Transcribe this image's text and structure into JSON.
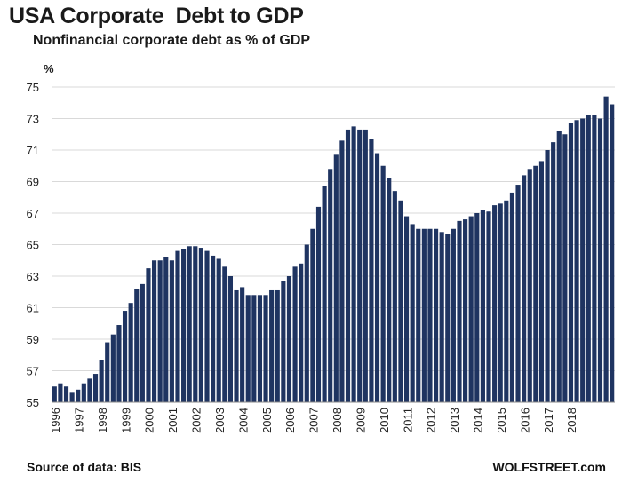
{
  "title": "USA Corporate  Debt to GDP",
  "subtitle": "Nonfinancial corporate debt as % of GDP",
  "source": "Source of data: BIS",
  "brand": "WOLFSTREET.com",
  "chart_data": {
    "type": "bar",
    "ylabel": "%",
    "ylim": [
      55,
      75
    ],
    "yticks": [
      "55",
      "57",
      "59",
      "61",
      "63",
      "65",
      "67",
      "69",
      "71",
      "73",
      "75"
    ],
    "grid": true,
    "bar_color": "#1f3461",
    "year_labels": [
      "1996",
      "1997",
      "1998",
      "1999",
      "2000",
      "2001",
      "2002",
      "2003",
      "2004",
      "2005",
      "2006",
      "2007",
      "2008",
      "2009",
      "2010",
      "2011",
      "2012",
      "2013",
      "2014",
      "2015",
      "2016",
      "2017",
      "2018"
    ],
    "series": [
      {
        "values": [
          56.0,
          56.2,
          56.0,
          55.6,
          55.8,
          56.2,
          56.5,
          56.8,
          57.7,
          58.8,
          59.3,
          59.9,
          60.8,
          61.3,
          62.2,
          62.5,
          63.5,
          64.0,
          64.0,
          64.2,
          64.0,
          64.6,
          64.7,
          64.9,
          64.9,
          64.8,
          64.6,
          64.3,
          64.1,
          63.6,
          63.0,
          62.1,
          62.3,
          61.8,
          61.8,
          61.8,
          61.8,
          62.1,
          62.1,
          62.7,
          63.0,
          63.6,
          63.8,
          65.0,
          66.0,
          67.4,
          68.7,
          69.8,
          70.7,
          71.6,
          72.3,
          72.5,
          72.3,
          72.3,
          71.7,
          70.8,
          70.0,
          69.2,
          68.4,
          67.8,
          66.8,
          66.3,
          66.0,
          66.0,
          66.0,
          66.0,
          65.8,
          65.7,
          66.0,
          66.5,
          66.6,
          66.8,
          67.0,
          67.2,
          67.1,
          67.5,
          67.6,
          67.8,
          68.3,
          68.8,
          69.4,
          69.8,
          70.0,
          70.3,
          71.0,
          71.5,
          72.2,
          72.0,
          72.7,
          72.9,
          73.0,
          73.2,
          73.2,
          73.0,
          74.4,
          73.9
        ]
      }
    ]
  }
}
